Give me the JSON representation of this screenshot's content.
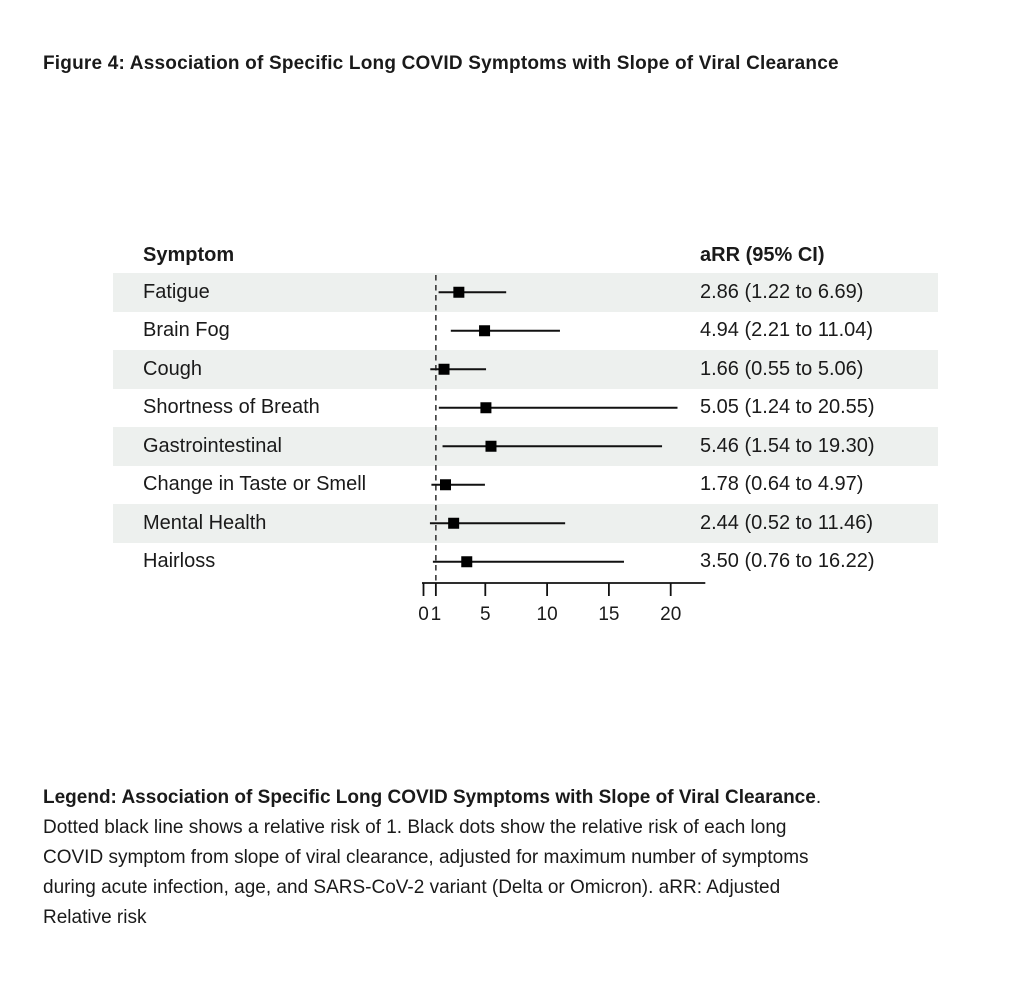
{
  "title": "Figure 4: Association of Specific Long COVID Symptoms with Slope of Viral Clearance",
  "table": {
    "symptom_header": "Symptom",
    "arr_header": "aRR (95% CI)"
  },
  "chart_data": {
    "type": "scatter",
    "variant": "forest-plot",
    "xlabel": "",
    "ylabel": "",
    "x_range": [
      0,
      22.8
    ],
    "x_ticks": [
      0,
      1,
      5,
      10,
      15,
      20
    ],
    "reference_line": 1,
    "grid": false,
    "rows": [
      {
        "symptom": "Fatigue",
        "arr": 2.86,
        "ci_low": 1.22,
        "ci_high": 6.69,
        "arr_text": "2.86 (1.22 to 6.69)"
      },
      {
        "symptom": "Brain Fog",
        "arr": 4.94,
        "ci_low": 2.21,
        "ci_high": 11.04,
        "arr_text": "4.94 (2.21 to 11.04)"
      },
      {
        "symptom": "Cough",
        "arr": 1.66,
        "ci_low": 0.55,
        "ci_high": 5.06,
        "arr_text": "1.66 (0.55 to 5.06)"
      },
      {
        "symptom": "Shortness of Breath",
        "arr": 5.05,
        "ci_low": 1.24,
        "ci_high": 20.55,
        "arr_text": "5.05 (1.24 to 20.55)"
      },
      {
        "symptom": "Gastrointestinal",
        "arr": 5.46,
        "ci_low": 1.54,
        "ci_high": 19.3,
        "arr_text": "5.46 (1.54 to 19.30)"
      },
      {
        "symptom": "Change in Taste or Smell",
        "arr": 1.78,
        "ci_low": 0.64,
        "ci_high": 4.97,
        "arr_text": "1.78 (0.64 to 4.97)"
      },
      {
        "symptom": "Mental Health",
        "arr": 2.44,
        "ci_low": 0.52,
        "ci_high": 11.46,
        "arr_text": "2.44 (0.52 to 11.46)"
      },
      {
        "symptom": "Hairloss",
        "arr": 3.5,
        "ci_low": 0.76,
        "ci_high": 16.22,
        "arr_text": "3.50 (0.76 to 16.22)"
      }
    ]
  },
  "legend": {
    "heading_bold": "Legend: Association of Specific Long COVID Symptoms with Slope of Viral Clearance",
    "heading_tail": ".",
    "lines": [
      "Dotted black line shows a relative risk of 1. Black dots show the relative risk of each long",
      "COVID symptom from slope of viral clearance, adjusted for maximum number of symptoms",
      "during acute infection, age, and SARS-CoV-2 variant (Delta or Omicron). aRR: Adjusted",
      "Relative risk"
    ]
  },
  "colors": {
    "band": "#edf0ee",
    "text": "#1a1a1a",
    "line": "#111111",
    "reference": "#3a3a3a",
    "marker": "#000000"
  }
}
